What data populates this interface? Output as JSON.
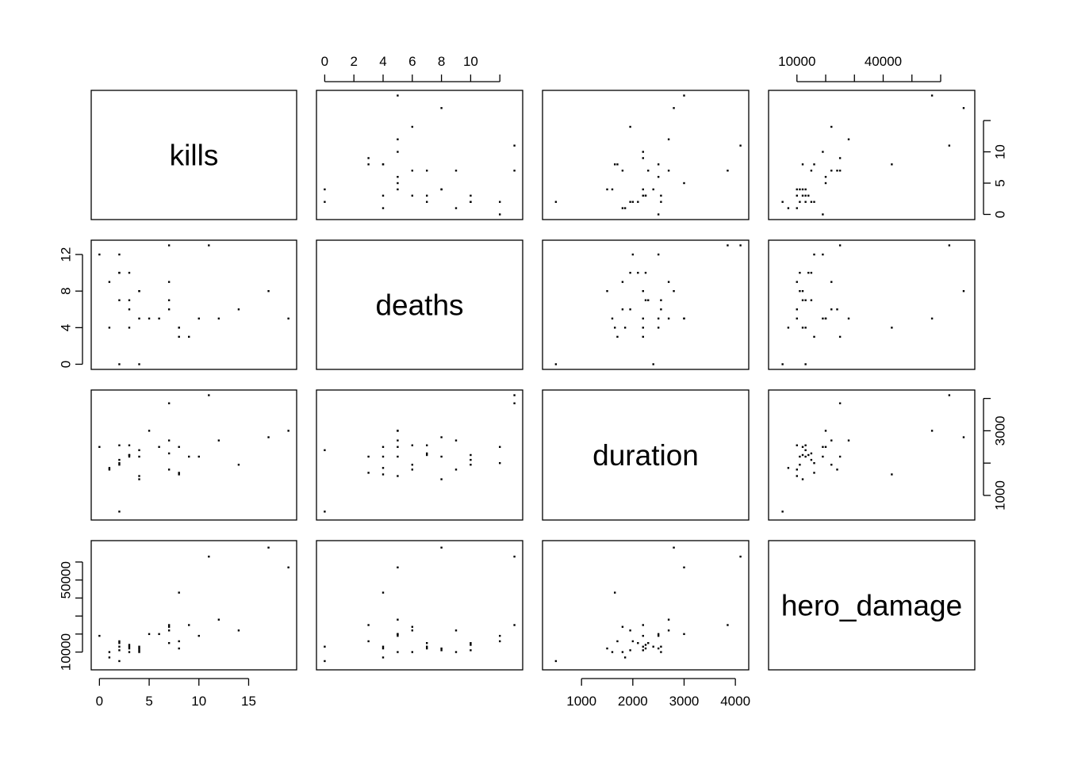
{
  "chart_data": {
    "type": "scatter",
    "subtype": "scatterplot-matrix",
    "variables": [
      "kills",
      "deaths",
      "duration",
      "hero_damage"
    ],
    "ranges": {
      "kills": [
        0,
        19
      ],
      "deaths": [
        0,
        13
      ],
      "duration": [
        400,
        4100
      ],
      "hero_damage": [
        3000,
        69000
      ]
    },
    "axes": {
      "kills": {
        "ticks": [
          0,
          5,
          10,
          15
        ],
        "labels": [
          "0",
          "5",
          "10",
          "15"
        ]
      },
      "deaths": {
        "ticks": [
          0,
          2,
          4,
          6,
          8,
          10,
          12
        ],
        "labels": [
          "0",
          "2",
          "4",
          "6",
          "8",
          "10",
          ""
        ],
        "left_labels": [
          "0",
          "4",
          "8",
          "12"
        ],
        "left_ticks": [
          0,
          4,
          8,
          12
        ]
      },
      "duration": {
        "ticks": [
          1000,
          2000,
          3000,
          4000
        ],
        "labels": [
          "1000",
          "2000",
          "3000",
          "4000"
        ],
        "right_ticks": [
          1000,
          2000,
          3000,
          4000
        ],
        "right_labels": [
          "1000",
          "",
          "3000",
          ""
        ]
      },
      "hero_damage": {
        "ticks": [
          10000,
          20000,
          30000,
          40000,
          50000,
          60000
        ],
        "top_labels": [
          "10000",
          "",
          "",
          "40000",
          "",
          ""
        ],
        "left_ticks": [
          10000,
          20000,
          30000,
          40000,
          50000,
          60000
        ],
        "left_labels": [
          "10000",
          "",
          "",
          "",
          "50000",
          ""
        ]
      },
      "kills_right": {
        "ticks": [
          0,
          5,
          10,
          15
        ],
        "labels": [
          "0",
          "5",
          "10",
          ""
        ]
      }
    },
    "points": [
      {
        "kills": 0,
        "deaths": 12,
        "duration": 2500,
        "hero_damage": 19000
      },
      {
        "kills": 1,
        "deaths": 9,
        "duration": 1800,
        "hero_damage": 10000
      },
      {
        "kills": 1,
        "deaths": 4,
        "duration": 1850,
        "hero_damage": 7000
      },
      {
        "kills": 2,
        "deaths": 12,
        "duration": 2000,
        "hero_damage": 16000
      },
      {
        "kills": 2,
        "deaths": 10,
        "duration": 2100,
        "hero_damage": 15000
      },
      {
        "kills": 2,
        "deaths": 7,
        "duration": 2550,
        "hero_damage": 13000
      },
      {
        "kills": 2,
        "deaths": 0,
        "duration": 500,
        "hero_damage": 5000
      },
      {
        "kills": 2,
        "deaths": 10,
        "duration": 1950,
        "hero_damage": 11000
      },
      {
        "kills": 3,
        "deaths": 10,
        "duration": 2250,
        "hero_damage": 14000
      },
      {
        "kills": 3,
        "deaths": 7,
        "duration": 2250,
        "hero_damage": 12000
      },
      {
        "kills": 3,
        "deaths": 6,
        "duration": 2550,
        "hero_damage": 10000
      },
      {
        "kills": 3,
        "deaths": 4,
        "duration": 2200,
        "hero_damage": 13000
      },
      {
        "kills": 4,
        "deaths": 8,
        "duration": 1500,
        "hero_damage": 12000
      },
      {
        "kills": 4,
        "deaths": 5,
        "duration": 1600,
        "hero_damage": 10000
      },
      {
        "kills": 4,
        "deaths": 8,
        "duration": 2200,
        "hero_damage": 11000
      },
      {
        "kills": 4,
        "deaths": 0,
        "duration": 2400,
        "hero_damage": 13000
      },
      {
        "kills": 5,
        "deaths": 5,
        "duration": 3000,
        "hero_damage": 20000
      },
      {
        "kills": 6,
        "deaths": 5,
        "duration": 2500,
        "hero_damage": 20000
      },
      {
        "kills": 7,
        "deaths": 13,
        "duration": 3850,
        "hero_damage": 25000
      },
      {
        "kills": 7,
        "deaths": 9,
        "duration": 2700,
        "hero_damage": 22000
      },
      {
        "kills": 7,
        "deaths": 7,
        "duration": 2300,
        "hero_damage": 15000
      },
      {
        "kills": 7,
        "deaths": 6,
        "duration": 1800,
        "hero_damage": 24000
      },
      {
        "kills": 8,
        "deaths": 4,
        "duration": 2500,
        "hero_damage": 12000
      },
      {
        "kills": 8,
        "deaths": 3,
        "duration": 1700,
        "hero_damage": 16000
      },
      {
        "kills": 8,
        "deaths": 4,
        "duration": 1650,
        "hero_damage": 43000
      },
      {
        "kills": 9,
        "deaths": 3,
        "duration": 2200,
        "hero_damage": 25000
      },
      {
        "kills": 10,
        "deaths": 5,
        "duration": 2200,
        "hero_damage": 19000
      },
      {
        "kills": 11,
        "deaths": 13,
        "duration": 4100,
        "hero_damage": 63000
      },
      {
        "kills": 12,
        "deaths": 5,
        "duration": 2700,
        "hero_damage": 28000
      },
      {
        "kills": 14,
        "deaths": 6,
        "duration": 1950,
        "hero_damage": 22000
      },
      {
        "kills": 17,
        "deaths": 8,
        "duration": 2800,
        "hero_damage": 68000
      },
      {
        "kills": 19,
        "deaths": 5,
        "duration": 3000,
        "hero_damage": 57000
      }
    ]
  }
}
